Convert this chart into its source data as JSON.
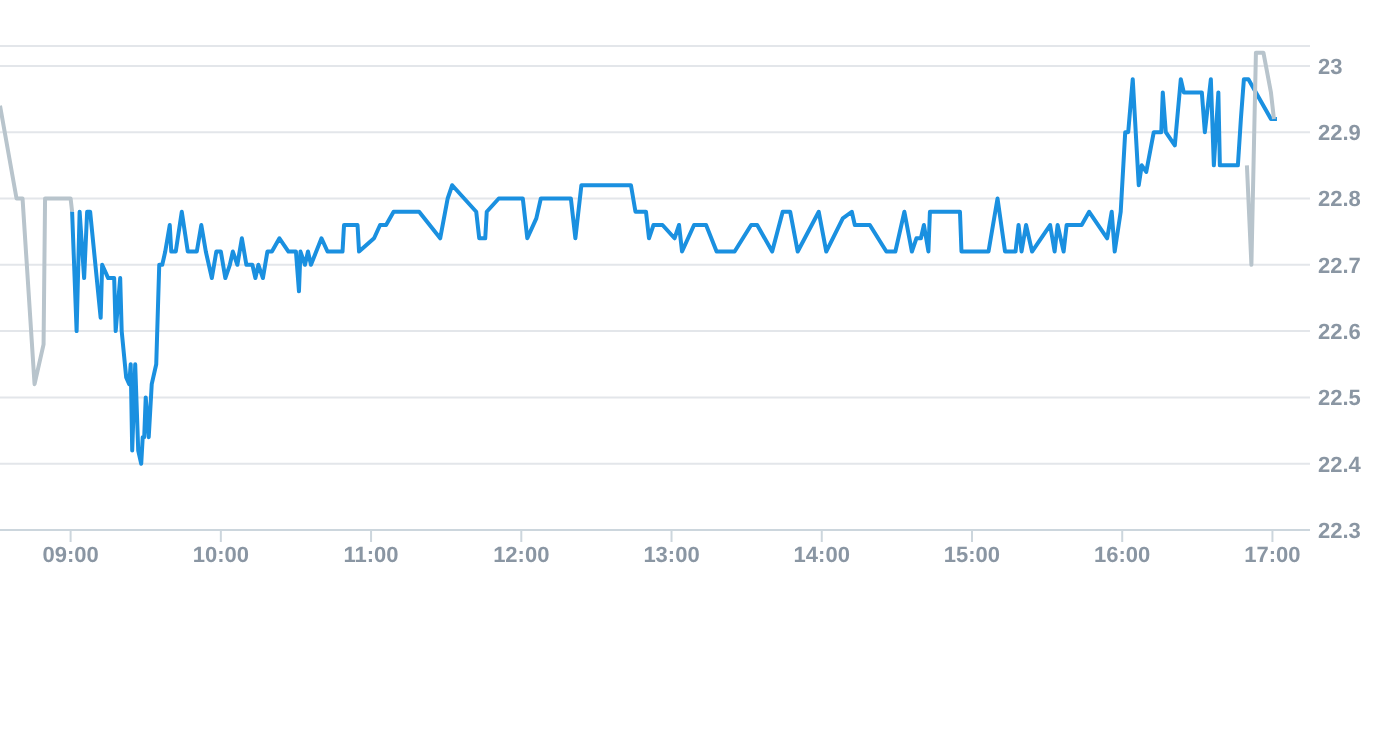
{
  "chart_data": {
    "type": "line",
    "xlim": [
      8.53,
      17.25
    ],
    "ylim": [
      22.3,
      23.03
    ],
    "xticks": [
      {
        "value": 9,
        "label": "09:00"
      },
      {
        "value": 10,
        "label": "10:00"
      },
      {
        "value": 11,
        "label": "11:00"
      },
      {
        "value": 12,
        "label": "12:00"
      },
      {
        "value": 13,
        "label": "13:00"
      },
      {
        "value": 14,
        "label": "14:00"
      },
      {
        "value": 15,
        "label": "15:00"
      },
      {
        "value": 16,
        "label": "16:00"
      },
      {
        "value": 17,
        "label": "17:00"
      }
    ],
    "yticks": [
      22.3,
      22.4,
      22.5,
      22.6,
      22.7,
      22.8,
      22.9,
      23
    ],
    "grid": "y",
    "marker": "none",
    "line_style": "solid",
    "series": [
      {
        "color": "#b8c4cc",
        "x": [
          8.53,
          8.64,
          8.68,
          8.76,
          8.82,
          8.83,
          9.0,
          9.01
        ],
        "values": [
          22.94,
          22.8,
          22.8,
          22.52,
          22.58,
          22.8,
          22.8,
          22.78
        ]
      },
      {
        "color": "#1a90e0",
        "x": [
          9.01,
          9.04,
          9.06,
          9.09,
          9.11,
          9.13,
          9.2,
          9.21,
          9.25,
          9.29,
          9.3,
          9.33,
          9.34,
          9.37,
          9.39,
          9.4,
          9.41,
          9.43,
          9.45,
          9.47,
          9.48,
          9.49,
          9.5,
          9.52,
          9.54,
          9.57,
          9.59,
          9.61,
          9.63,
          9.66,
          9.67,
          9.7,
          9.74,
          9.78,
          9.84,
          9.87,
          9.9,
          9.94,
          9.97,
          10.0,
          10.03,
          10.06,
          10.08,
          10.11,
          10.14,
          10.17,
          10.21,
          10.23,
          10.25,
          10.28,
          10.31,
          10.34,
          10.39,
          10.45,
          10.5,
          10.52,
          10.53,
          10.56,
          10.58,
          10.6,
          10.67,
          10.71,
          10.81,
          10.82,
          10.91,
          10.92,
          11.02,
          11.06,
          11.1,
          11.15,
          11.32,
          11.46,
          11.51,
          11.54,
          11.7,
          11.72,
          11.76,
          11.77,
          11.85,
          12.01,
          12.04,
          12.1,
          12.13,
          12.33,
          12.36,
          12.4,
          12.73,
          12.76,
          12.83,
          12.85,
          12.88,
          12.94,
          13.02,
          13.05,
          13.07,
          13.15,
          13.23,
          13.3,
          13.42,
          13.53,
          13.57,
          13.67,
          13.74,
          13.79,
          13.84,
          13.98,
          14.03,
          14.14,
          14.2,
          14.22,
          14.32,
          14.43,
          14.49,
          14.55,
          14.6,
          14.63,
          14.66,
          14.68,
          14.71,
          14.72,
          14.74,
          14.92,
          14.93,
          15.11,
          15.17,
          15.22,
          15.29,
          15.31,
          15.33,
          15.36,
          15.4,
          15.52,
          15.55,
          15.57,
          15.61,
          15.63,
          15.73,
          15.78,
          15.9,
          15.93,
          15.95,
          15.99,
          16.02,
          16.04,
          16.07,
          16.11,
          16.13,
          16.16,
          16.21,
          16.26,
          16.27,
          16.29,
          16.35,
          16.39,
          16.41,
          16.53,
          16.55,
          16.59,
          16.61,
          16.64,
          16.65,
          16.77,
          16.79,
          16.81,
          16.84,
          16.99,
          17.03
        ],
        "values": [
          22.78,
          22.6,
          22.78,
          22.68,
          22.78,
          22.78,
          22.62,
          22.7,
          22.68,
          22.68,
          22.6,
          22.68,
          22.6,
          22.53,
          22.52,
          22.55,
          22.42,
          22.55,
          22.42,
          22.4,
          22.44,
          22.44,
          22.5,
          22.44,
          22.52,
          22.55,
          22.7,
          22.7,
          22.72,
          22.76,
          22.72,
          22.72,
          22.78,
          22.72,
          22.72,
          22.76,
          22.72,
          22.68,
          22.72,
          22.72,
          22.68,
          22.7,
          22.72,
          22.7,
          22.74,
          22.7,
          22.7,
          22.68,
          22.7,
          22.68,
          22.72,
          22.72,
          22.74,
          22.72,
          22.72,
          22.66,
          22.72,
          22.7,
          22.72,
          22.7,
          22.74,
          22.72,
          22.72,
          22.76,
          22.76,
          22.72,
          22.74,
          22.76,
          22.76,
          22.78,
          22.78,
          22.74,
          22.8,
          22.82,
          22.78,
          22.74,
          22.74,
          22.78,
          22.8,
          22.8,
          22.74,
          22.77,
          22.8,
          22.8,
          22.74,
          22.82,
          22.82,
          22.78,
          22.78,
          22.74,
          22.76,
          22.76,
          22.74,
          22.76,
          22.72,
          22.76,
          22.76,
          22.72,
          22.72,
          22.76,
          22.76,
          22.72,
          22.78,
          22.78,
          22.72,
          22.78,
          22.72,
          22.77,
          22.78,
          22.76,
          22.76,
          22.72,
          22.72,
          22.78,
          22.72,
          22.74,
          22.74,
          22.76,
          22.72,
          22.78,
          22.78,
          22.78,
          22.72,
          22.72,
          22.8,
          22.72,
          22.72,
          22.76,
          22.72,
          22.76,
          22.72,
          22.76,
          22.72,
          22.76,
          22.72,
          22.76,
          22.76,
          22.78,
          22.74,
          22.78,
          22.72,
          22.78,
          22.9,
          22.9,
          22.98,
          22.82,
          22.85,
          22.84,
          22.9,
          22.9,
          22.96,
          22.9,
          22.88,
          22.98,
          22.96,
          22.96,
          22.9,
          22.98,
          22.85,
          22.96,
          22.85,
          22.85,
          22.92,
          22.98,
          22.98,
          22.92,
          22.92
        ]
      },
      {
        "color": "#b8c4cc",
        "x": [
          16.83,
          16.86,
          16.89,
          16.94,
          16.99,
          17.01
        ],
        "values": [
          22.85,
          22.7,
          23.02,
          23.02,
          22.96,
          22.92
        ]
      }
    ]
  }
}
